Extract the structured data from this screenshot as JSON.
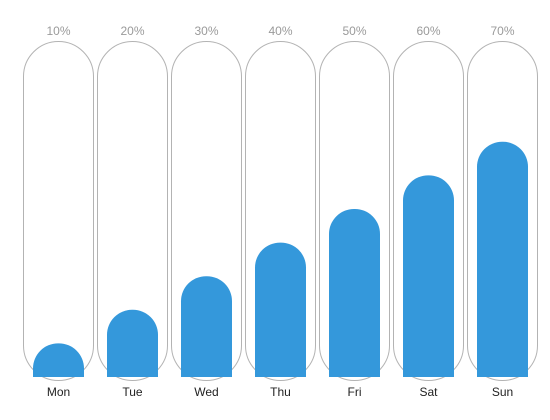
{
  "chart_data": {
    "type": "bar",
    "categories": [
      "Mon",
      "Tue",
      "Wed",
      "Thu",
      "Fri",
      "Sat",
      "Sun"
    ],
    "value_labels": [
      "10%",
      "20%",
      "30%",
      "40%",
      "50%",
      "60%",
      "70%"
    ],
    "series": [
      {
        "values": [
          10,
          20,
          30,
          40,
          50,
          60,
          70
        ]
      }
    ],
    "ylim": [
      0,
      100
    ],
    "grid": false,
    "legend": "none",
    "colors": {
      "bar": "#3498db",
      "track_stroke": "#b3b3b3",
      "value_label": "#9a9a9a",
      "category_label": "#222222"
    }
  }
}
